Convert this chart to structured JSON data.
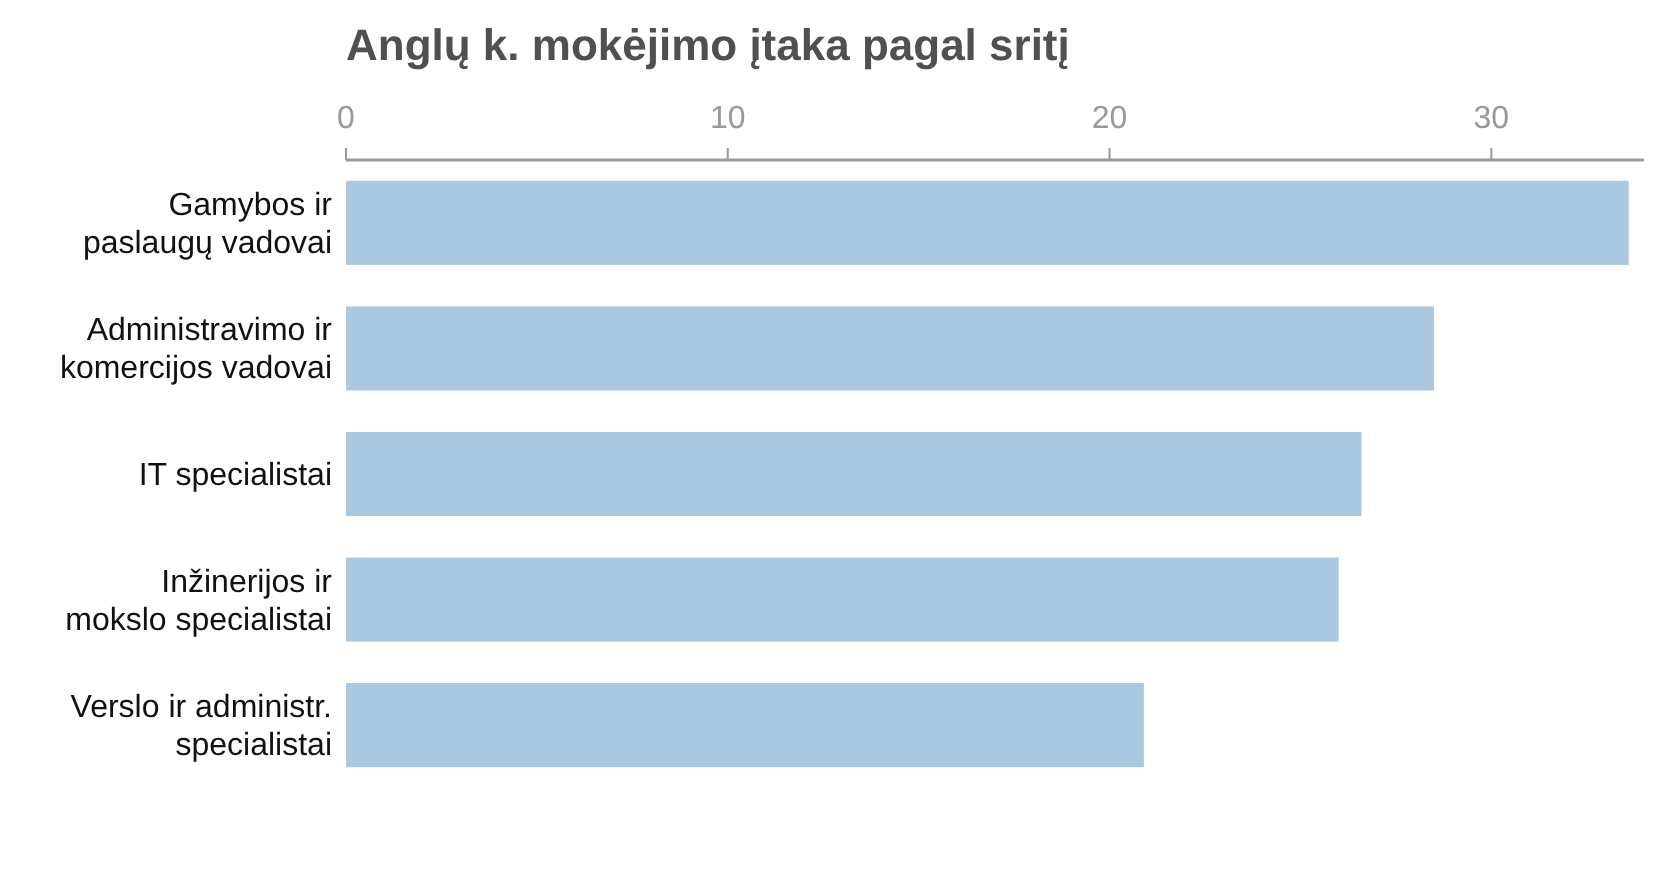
{
  "chart_data": {
    "type": "bar",
    "orientation": "horizontal",
    "title": "Anglų k. mokėjimo įtaka pagal sritį",
    "categories": [
      "Gamybos ir\npaslaugų vadovai",
      "Administravimo ir\nkomercijos vadovai",
      "IT specialistai",
      "Inžinerijos ir\nmokslo specialistai",
      "Verslo ir administr.\nspecialistai"
    ],
    "values": [
      33.6,
      28.5,
      26.6,
      26.0,
      20.9
    ],
    "color": "#aac9e0",
    "xlim": [
      0,
      34
    ],
    "xticks": [
      0,
      10,
      20,
      30
    ]
  }
}
